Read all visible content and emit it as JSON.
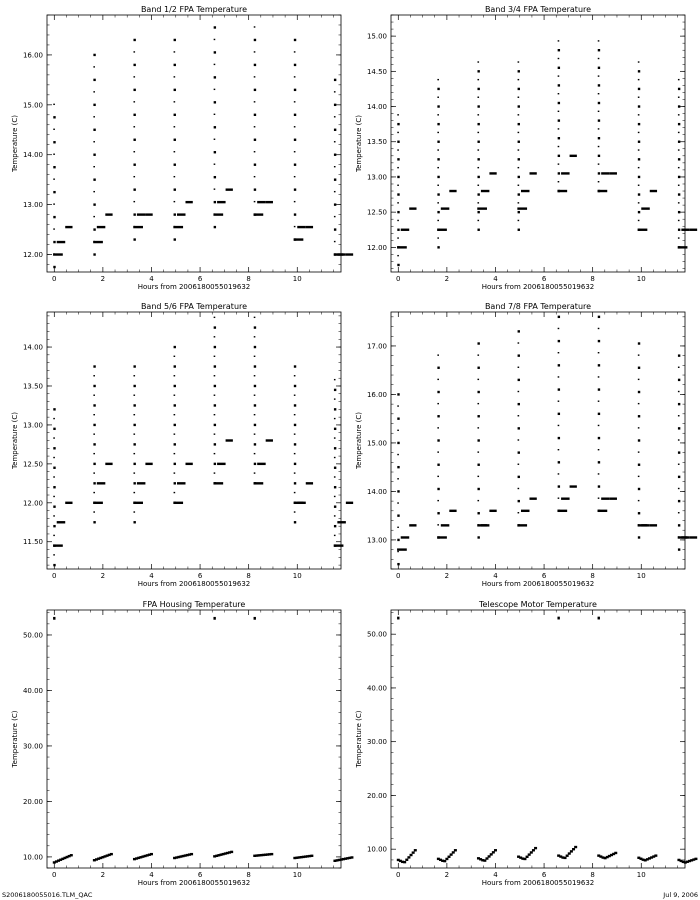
{
  "footer": {
    "left": "S2006180055016.TLM_QAC",
    "right": "Jul  9, 2006"
  },
  "chart_data": [
    {
      "type": "scatter",
      "title": "Band 1/2 FPA Temperature",
      "xlabel": "Hours from 2006180055019632",
      "ylabel": "Temperature (C)",
      "xlim": [
        -0.3,
        11.8
      ],
      "ylim": [
        11.65,
        16.8
      ],
      "xticks": [
        0,
        2,
        4,
        6,
        8,
        10
      ],
      "xtick_labels": [
        "0",
        "2",
        "4",
        "6",
        "8",
        "10"
      ],
      "yticks": [
        12.0,
        13.0,
        14.0,
        15.0,
        16.0
      ],
      "ytick_labels": [
        "12.00",
        "13.00",
        "14.00",
        "15.00",
        "16.00"
      ],
      "grid": false,
      "cycles": [
        {
          "t": 0.0,
          "peak": 15.0,
          "low": 11.75,
          "hold": 12.0,
          "plateau": 12.25,
          "step": 12.55
        },
        {
          "t": 1.65,
          "peak": 16.0,
          "low": 12.0,
          "hold": 12.25,
          "plateau": 12.55,
          "step": 12.8
        },
        {
          "t": 3.3,
          "peak": 16.3,
          "low": 12.3,
          "hold": 12.55,
          "plateau": 12.8,
          "step": 12.8
        },
        {
          "t": 4.95,
          "peak": 16.3,
          "low": 12.3,
          "hold": 12.55,
          "plateau": 12.8,
          "step": 13.05
        },
        {
          "t": 6.6,
          "peak": 16.6,
          "low": 12.55,
          "hold": 12.8,
          "plateau": 13.05,
          "step": 13.3
        },
        {
          "t": 8.25,
          "peak": 16.6,
          "low": 12.8,
          "hold": 12.8,
          "plateau": 13.05,
          "step": 13.05
        },
        {
          "t": 9.9,
          "peak": 16.3,
          "low": 12.3,
          "hold": 12.3,
          "plateau": 12.55,
          "step": 12.55
        },
        {
          "t": 11.55,
          "peak": 15.5,
          "low": 12.0,
          "hold": 12.0,
          "plateau": 12.0,
          "step": 12.0
        }
      ]
    },
    {
      "type": "scatter",
      "title": "Band 3/4 FPA Temperature",
      "xlabel": "Hours from 2006180055019632",
      "ylabel": "Temperature (C)",
      "xlim": [
        -0.3,
        11.8
      ],
      "ylim": [
        11.65,
        15.3
      ],
      "xticks": [
        0,
        2,
        4,
        6,
        8,
        10
      ],
      "xtick_labels": [
        "0",
        "2",
        "4",
        "6",
        "8",
        "10"
      ],
      "yticks": [
        12.0,
        12.5,
        13.0,
        13.5,
        14.0,
        14.5,
        15.0
      ],
      "ytick_labels": [
        "12.00",
        "12.50",
        "13.00",
        "13.50",
        "14.00",
        "14.50",
        "15.00"
      ],
      "grid": false,
      "cycles": [
        {
          "t": 0.0,
          "peak": 13.9,
          "low": 11.75,
          "hold": 12.0,
          "plateau": 12.25,
          "step": 12.55
        },
        {
          "t": 1.65,
          "peak": 14.4,
          "low": 12.0,
          "hold": 12.25,
          "plateau": 12.55,
          "step": 12.8
        },
        {
          "t": 3.3,
          "peak": 14.65,
          "low": 12.25,
          "hold": 12.55,
          "plateau": 12.8,
          "step": 13.05
        },
        {
          "t": 4.95,
          "peak": 14.65,
          "low": 12.25,
          "hold": 12.55,
          "plateau": 12.8,
          "step": 13.05
        },
        {
          "t": 6.6,
          "peak": 14.95,
          "low": 12.8,
          "hold": 12.8,
          "plateau": 13.05,
          "step": 13.3
        },
        {
          "t": 8.25,
          "peak": 14.95,
          "low": 12.8,
          "hold": 12.8,
          "plateau": 13.05,
          "step": 13.05
        },
        {
          "t": 9.9,
          "peak": 14.65,
          "low": 12.25,
          "hold": 12.25,
          "plateau": 12.55,
          "step": 12.8
        },
        {
          "t": 11.55,
          "peak": 14.4,
          "low": 12.0,
          "hold": 12.0,
          "plateau": 12.25,
          "step": 12.25
        }
      ]
    },
    {
      "type": "scatter",
      "title": "Band 5/6 FPA Temperature",
      "xlabel": "Hours from 2006180055019632",
      "ylabel": "Temperature (C)",
      "xlim": [
        -0.3,
        11.8
      ],
      "ylim": [
        11.15,
        14.45
      ],
      "xticks": [
        0,
        2,
        4,
        6,
        8,
        10
      ],
      "xtick_labels": [
        "0",
        "2",
        "4",
        "6",
        "8",
        "10"
      ],
      "yticks": [
        11.5,
        12.0,
        12.5,
        13.0,
        13.5,
        14.0
      ],
      "ytick_labels": [
        "11.50",
        "12.00",
        "12.50",
        "13.00",
        "13.50",
        "14.00"
      ],
      "grid": false,
      "cycles": [
        {
          "t": 0.0,
          "peak": 13.3,
          "low": 11.2,
          "hold": 11.45,
          "plateau": 11.75,
          "step": 12.0
        },
        {
          "t": 1.65,
          "peak": 13.85,
          "low": 11.75,
          "hold": 12.0,
          "plateau": 12.25,
          "step": 12.5
        },
        {
          "t": 3.3,
          "peak": 13.85,
          "low": 11.75,
          "hold": 12.0,
          "plateau": 12.25,
          "step": 12.5
        },
        {
          "t": 4.95,
          "peak": 14.1,
          "low": 12.0,
          "hold": 12.0,
          "plateau": 12.25,
          "step": 12.5
        },
        {
          "t": 6.6,
          "peak": 14.4,
          "low": 12.25,
          "hold": 12.25,
          "plateau": 12.5,
          "step": 12.8
        },
        {
          "t": 8.25,
          "peak": 14.4,
          "low": 12.25,
          "hold": 12.25,
          "plateau": 12.5,
          "step": 12.8
        },
        {
          "t": 9.9,
          "peak": 13.85,
          "low": 11.75,
          "hold": 12.0,
          "plateau": 12.0,
          "step": 12.25
        },
        {
          "t": 11.55,
          "peak": 13.6,
          "low": 11.45,
          "hold": 11.45,
          "plateau": 11.75,
          "step": 12.0
        }
      ]
    },
    {
      "type": "scatter",
      "title": "Band 7/8 FPA Temperature",
      "xlabel": "Hours from 2006180055019632",
      "ylabel": "Temperature (C)",
      "xlim": [
        -0.3,
        11.8
      ],
      "ylim": [
        12.4,
        17.7
      ],
      "xticks": [
        0,
        2,
        4,
        6,
        8,
        10
      ],
      "xtick_labels": [
        "0",
        "2",
        "4",
        "6",
        "8",
        "10"
      ],
      "yticks": [
        13.0,
        14.0,
        15.0,
        16.0,
        17.0
      ],
      "ytick_labels": [
        "13.00",
        "14.00",
        "15.00",
        "16.00",
        "17.00"
      ],
      "grid": false,
      "cycles": [
        {
          "t": 0.0,
          "peak": 16.0,
          "low": 12.5,
          "hold": 12.8,
          "plateau": 13.05,
          "step": 13.3
        },
        {
          "t": 1.65,
          "peak": 16.8,
          "low": 13.05,
          "hold": 13.05,
          "plateau": 13.3,
          "step": 13.6
        },
        {
          "t": 3.3,
          "peak": 17.05,
          "low": 13.05,
          "hold": 13.3,
          "plateau": 13.3,
          "step": 13.6
        },
        {
          "t": 4.95,
          "peak": 17.35,
          "low": 13.3,
          "hold": 13.3,
          "plateau": 13.6,
          "step": 13.85
        },
        {
          "t": 6.6,
          "peak": 17.6,
          "low": 13.6,
          "hold": 13.6,
          "plateau": 13.85,
          "step": 14.1
        },
        {
          "t": 8.25,
          "peak": 17.6,
          "low": 13.6,
          "hold": 13.6,
          "plateau": 13.85,
          "step": 13.85
        },
        {
          "t": 9.9,
          "peak": 17.05,
          "low": 13.05,
          "hold": 13.3,
          "plateau": 13.3,
          "step": 13.3
        },
        {
          "t": 11.55,
          "peak": 16.8,
          "low": 12.8,
          "hold": 13.05,
          "plateau": 13.05,
          "step": 13.05
        }
      ]
    },
    {
      "type": "scatter",
      "title": "FPA Housing Temperature",
      "xlabel": "Hours from 2006180055019632",
      "ylabel": "Temperature (C)",
      "xlim": [
        -0.3,
        11.8
      ],
      "ylim": [
        8.0,
        54.5
      ],
      "xticks": [
        0,
        2,
        4,
        6,
        8,
        10
      ],
      "xtick_labels": [
        "0",
        "2",
        "4",
        "6",
        "8",
        "10"
      ],
      "yticks": [
        10,
        20,
        30,
        40,
        50
      ],
      "ytick_labels": [
        "10.00",
        "20.00",
        "30.00",
        "40.00",
        "50.00"
      ],
      "grid": false,
      "outliers": [
        {
          "x": 0.0,
          "y": 53.0
        },
        {
          "x": 6.6,
          "y": 53.0
        },
        {
          "x": 8.25,
          "y": 53.0
        }
      ],
      "segments": [
        {
          "t": 0.0,
          "start": 9.0,
          "end": 10.3
        },
        {
          "t": 1.65,
          "start": 9.4,
          "end": 10.5
        },
        {
          "t": 3.3,
          "start": 9.6,
          "end": 10.5
        },
        {
          "t": 4.95,
          "start": 9.8,
          "end": 10.5
        },
        {
          "t": 6.6,
          "start": 10.1,
          "end": 10.9
        },
        {
          "t": 8.25,
          "start": 10.2,
          "end": 10.5
        },
        {
          "t": 9.9,
          "start": 9.8,
          "end": 10.2
        },
        {
          "t": 11.55,
          "start": 9.3,
          "end": 9.9
        }
      ]
    },
    {
      "type": "scatter",
      "title": "Telescope Motor Temperature",
      "xlabel": "Hours from 2006180055019632",
      "ylabel": "Temperature (C)",
      "xlim": [
        -0.3,
        11.8
      ],
      "ylim": [
        6.5,
        54.5
      ],
      "xticks": [
        0,
        2,
        4,
        6,
        8,
        10
      ],
      "xtick_labels": [
        "0",
        "2",
        "4",
        "6",
        "8",
        "10"
      ],
      "yticks": [
        10,
        20,
        30,
        40,
        50
      ],
      "ytick_labels": [
        "10.00",
        "20.00",
        "30.00",
        "40.00",
        "50.00"
      ],
      "grid": false,
      "outliers": [
        {
          "x": 0.0,
          "y": 53.0
        },
        {
          "x": 6.6,
          "y": 53.0
        },
        {
          "x": 8.25,
          "y": 53.0
        }
      ],
      "segments": [
        {
          "t": 0.0,
          "start": 8.0,
          "end": 9.8,
          "shape": "v"
        },
        {
          "t": 1.65,
          "start": 8.2,
          "end": 9.8,
          "shape": "v"
        },
        {
          "t": 3.3,
          "start": 8.3,
          "end": 9.8,
          "shape": "v"
        },
        {
          "t": 4.95,
          "start": 8.6,
          "end": 10.2,
          "shape": "v"
        },
        {
          "t": 6.6,
          "start": 8.8,
          "end": 10.4,
          "shape": "v"
        },
        {
          "t": 8.25,
          "start": 8.8,
          "end": 9.3,
          "shape": "v"
        },
        {
          "t": 9.9,
          "start": 8.4,
          "end": 8.8,
          "shape": "v"
        },
        {
          "t": 11.55,
          "start": 8.0,
          "end": 8.2,
          "shape": "v"
        }
      ]
    }
  ]
}
